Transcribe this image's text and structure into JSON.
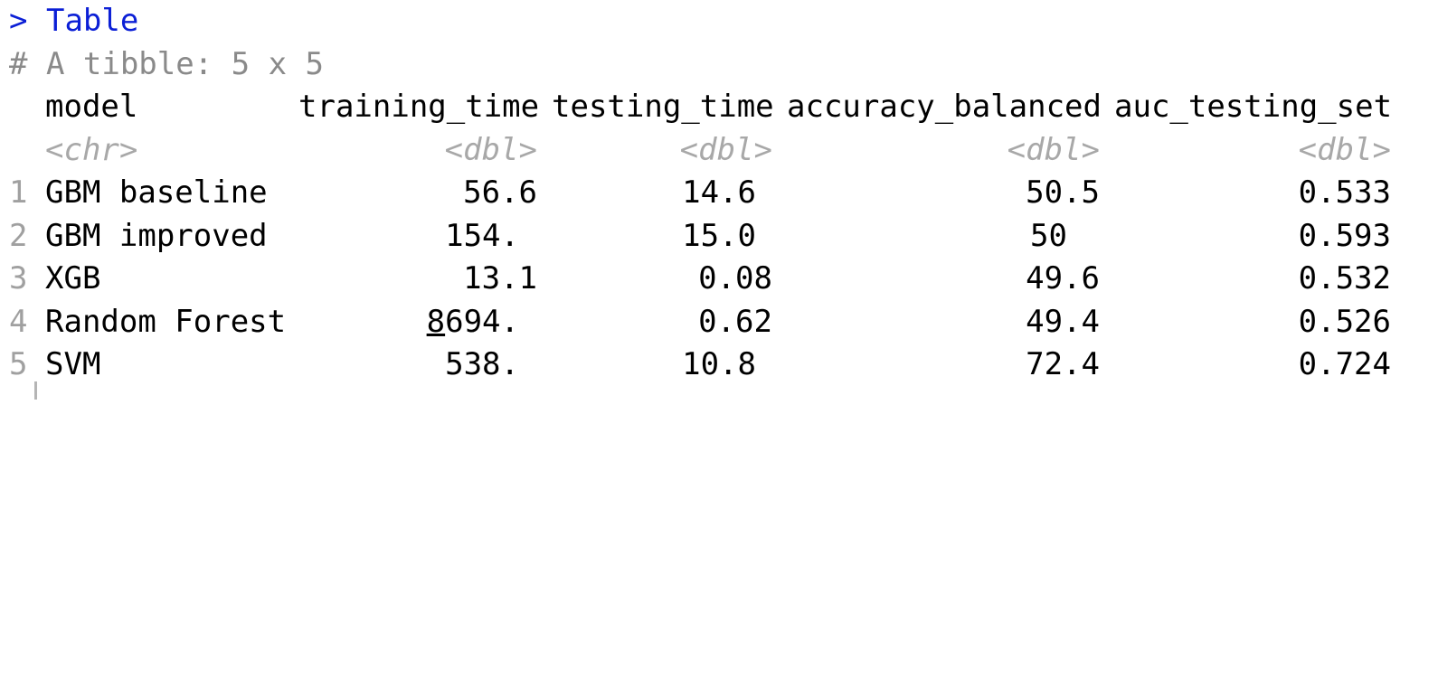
{
  "console": {
    "prompt": ">",
    "command": "Table",
    "comment": "# A tibble: 5 x 5",
    "columns": [
      {
        "name": "model",
        "type": "<chr>"
      },
      {
        "name": "training_time",
        "type": "<dbl>"
      },
      {
        "name": "testing_time",
        "type": "<dbl>"
      },
      {
        "name": "accuracy_balanced",
        "type": "<dbl>"
      },
      {
        "name": "auc_testing_set",
        "type": "<dbl>"
      }
    ],
    "rows": [
      {
        "index": "1",
        "model": "GBM baseline",
        "training_time": "56.6",
        "testing_time": "14.6",
        "accuracy_balanced": "50.5",
        "auc_testing_set": "0.533"
      },
      {
        "index": "2",
        "model": "GBM improved",
        "training_time": "154.",
        "testing_time": "15.0",
        "accuracy_balanced": "50",
        "auc_testing_set": "0.593"
      },
      {
        "index": "3",
        "model": "XGB",
        "training_time": "13.1",
        "testing_time": "0.08",
        "accuracy_balanced": "49.6",
        "auc_testing_set": "0.532"
      },
      {
        "index": "4",
        "model": "Random Forest",
        "training_time_underlined_digit": "8",
        "training_time_rest": "694.",
        "testing_time": "0.62",
        "accuracy_balanced": "49.4",
        "auc_testing_set": "0.526"
      },
      {
        "index": "5",
        "model": "SVM",
        "training_time": "538.",
        "testing_time": "10.8",
        "accuracy_balanced": "72.4",
        "auc_testing_set": "0.724"
      }
    ]
  }
}
